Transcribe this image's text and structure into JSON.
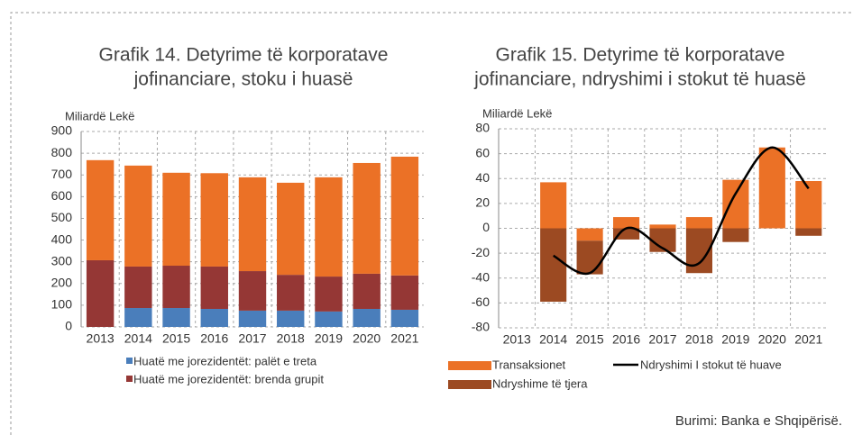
{
  "charts": [
    {
      "chart_data": {
        "type": "bar",
        "stacked": true,
        "title": [
          "Grafik 14. Detyrime të korporatave",
          "jofinanciare, stoku i huasë"
        ],
        "ylabel": "Miliardë Lekë",
        "categories": [
          "2013",
          "2014",
          "2015",
          "2016",
          "2017",
          "2018",
          "2019",
          "2020",
          "2021"
        ],
        "series": [
          {
            "name": "Huatë me jorezidentët: palët e treta",
            "color": "#4a7ebb",
            "values": [
              0,
              87,
              87,
              83,
              75,
              75,
              71,
              83,
              79
            ]
          },
          {
            "name": "Huatë me jorezidentët: brenda grupit",
            "color": "#953735",
            "values": [
              307,
              191,
              195,
              195,
              182,
              165,
              161,
              162,
              158
            ]
          },
          {
            "color": "#eb7126",
            "values": [
              461,
              465,
              428,
              430,
              432,
              424,
              457,
              510,
              547
            ]
          }
        ],
        "ylim": [
          0,
          900
        ],
        "yticks": [
          0,
          100,
          200,
          300,
          400,
          500,
          600,
          700,
          800,
          900
        ],
        "grid": true
      }
    },
    {
      "chart_data": {
        "type": "bar",
        "stacked": true,
        "title": [
          "Grafik 15. Detyrime të korporatave",
          "jofinanciare, ndryshimi i stokut të huasë"
        ],
        "ylabel": "Miliardë Lekë",
        "categories": [
          "2013",
          "2014",
          "2015",
          "2016",
          "2017",
          "2018",
          "2019",
          "2020",
          "2021"
        ],
        "series": [
          {
            "name": "Transaksionet",
            "color": "#eb7126",
            "values": [
              null,
              37,
              -10,
              9,
              3,
              9,
              39,
              65,
              38
            ]
          },
          {
            "name": "Ndryshime të tjera",
            "color": "#9c4a22",
            "values": [
              null,
              -59,
              -27,
              -9,
              -19,
              -36,
              -11,
              0,
              -6
            ]
          },
          {
            "name": "Ndryshimi I stokut të huave",
            "type": "line",
            "color": "#000000",
            "values": [
              null,
              -22,
              -36,
              0,
              -16,
              -28,
              28,
              65,
              32
            ]
          }
        ],
        "ylim": [
          -80,
          80
        ],
        "yticks": [
          -80,
          -60,
          -40,
          -20,
          0,
          20,
          40,
          60,
          80
        ],
        "grid": true
      }
    }
  ],
  "source": "Burimi: Banka e Shqipërisë."
}
